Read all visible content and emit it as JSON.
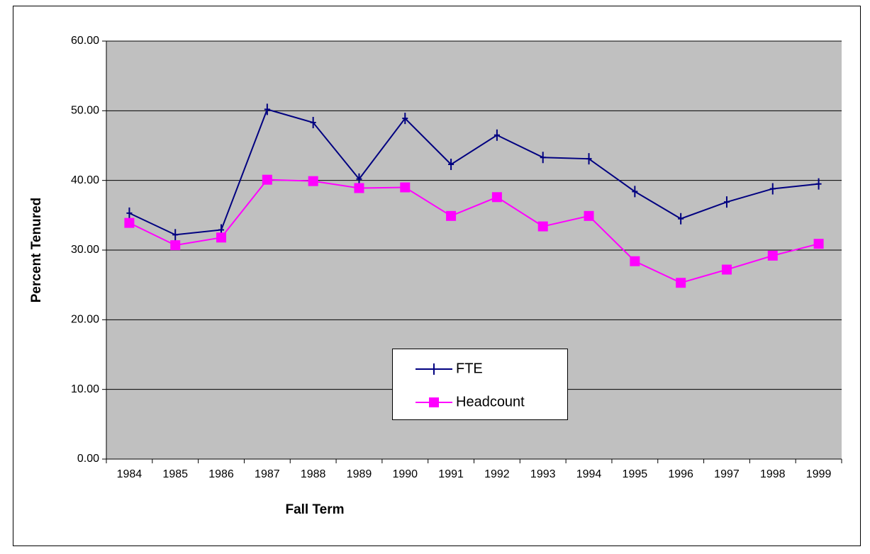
{
  "chart_data": {
    "type": "line",
    "x_label": "Fall Term",
    "y_label": "Percent Tenured",
    "categories": [
      "1984",
      "1985",
      "1986",
      "1987",
      "1988",
      "1989",
      "1990",
      "1991",
      "1992",
      "1993",
      "1994",
      "1995",
      "1996",
      "1997",
      "1998",
      "1999"
    ],
    "series": [
      {
        "name": "FTE",
        "color": "#000080",
        "marker": "plus",
        "values": [
          35.3,
          32.2,
          32.9,
          50.2,
          48.3,
          40.2,
          48.9,
          42.3,
          46.5,
          43.3,
          43.1,
          38.4,
          34.5,
          36.9,
          38.8,
          39.5
        ]
      },
      {
        "name": "Headcount",
        "color": "#ff00ff",
        "marker": "square",
        "values": [
          33.9,
          30.7,
          31.8,
          40.1,
          39.9,
          38.9,
          39.0,
          34.9,
          37.6,
          33.4,
          34.9,
          28.4,
          25.3,
          27.2,
          29.2,
          30.9
        ]
      }
    ],
    "ylim": [
      0,
      60
    ],
    "yticks": [
      {
        "value": 0,
        "label": "0.00"
      },
      {
        "value": 10,
        "label": "10.00"
      },
      {
        "value": 20,
        "label": "20.00"
      },
      {
        "value": 30,
        "label": "30.00"
      },
      {
        "value": 40,
        "label": "40.00"
      },
      {
        "value": 50,
        "label": "50.00"
      },
      {
        "value": 60,
        "label": "60.00"
      }
    ],
    "grid": true,
    "plot_background": "#c0c0c0",
    "legend_position": "center"
  }
}
